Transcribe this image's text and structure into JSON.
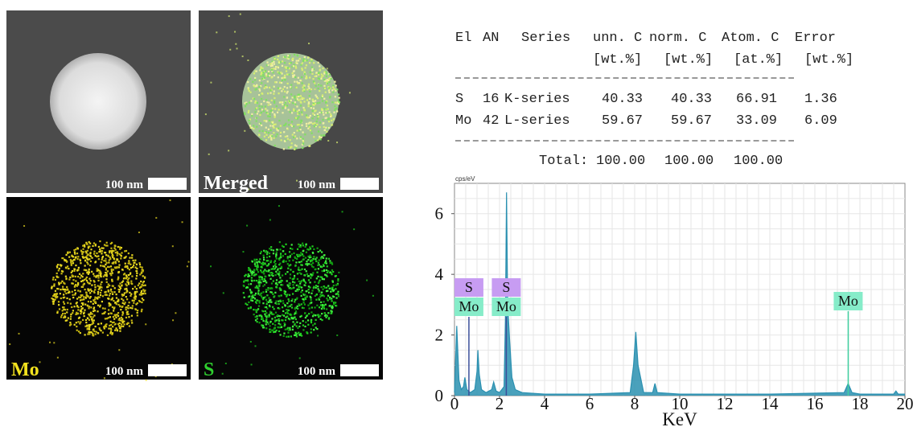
{
  "panels": [
    {
      "scale": "100 nm"
    },
    {
      "label": "Merged",
      "scale": "100 nm"
    },
    {
      "label": "Mo",
      "scale": "100 nm"
    },
    {
      "label": "S",
      "scale": "100 nm"
    }
  ],
  "table": {
    "header": [
      "El",
      "AN",
      "Series",
      "unn. C",
      "norm. C",
      "Atom. C",
      "Error"
    ],
    "units": [
      "[wt.%]",
      "[wt.%]",
      "[at.%]",
      "[wt.%]"
    ],
    "rows": [
      [
        "S",
        "16",
        "K-series",
        "40.33",
        "40.33",
        "66.91",
        "1.36"
      ],
      [
        "Mo",
        "42",
        "L-series",
        "59.67",
        "59.67",
        "33.09",
        "6.09"
      ]
    ],
    "total": [
      "Total:",
      "100.00",
      "100.00",
      "100.00"
    ]
  },
  "chart_data": {
    "type": "area",
    "y_unit": "cps/eV",
    "x_label": "KeV",
    "x": [
      0,
      0.1,
      0.2,
      0.3,
      0.4,
      0.46,
      0.55,
      0.7,
      0.9,
      1.0,
      1.04,
      1.1,
      1.2,
      1.4,
      1.65,
      1.74,
      1.85,
      2.0,
      2.2,
      2.26,
      2.31,
      2.36,
      2.45,
      2.55,
      2.7,
      3.0,
      4,
      6,
      7.8,
      7.95,
      8.05,
      8.15,
      8.4,
      8.8,
      8.9,
      9.0,
      10,
      14,
      17.3,
      17.48,
      17.65,
      18,
      19.5,
      19.6,
      19.7,
      20
    ],
    "values": [
      0.1,
      2.3,
      0.5,
      0.2,
      0.3,
      0.6,
      0.2,
      0.1,
      0.2,
      0.8,
      1.5,
      0.7,
      0.2,
      0.1,
      0.2,
      0.45,
      0.15,
      0.1,
      0.3,
      2.5,
      6.7,
      3.0,
      1.8,
      0.6,
      0.2,
      0.1,
      0.05,
      0.05,
      0.1,
      1.0,
      2.1,
      1.0,
      0.1,
      0.1,
      0.4,
      0.1,
      0.05,
      0.05,
      0.1,
      0.4,
      0.1,
      0.05,
      0.05,
      0.15,
      0.05,
      0.05
    ],
    "color": "#2a90b0",
    "xlim": [
      0,
      20
    ],
    "ylim": [
      0,
      7
    ],
    "xticks": [
      0,
      2,
      4,
      6,
      8,
      10,
      12,
      14,
      16,
      18,
      20
    ],
    "yticks": [
      0,
      2,
      4,
      6
    ],
    "grid": true,
    "peak_labels": [
      {
        "x": 0.64,
        "labels": [
          "S",
          "Mo"
        ]
      },
      {
        "x": 2.3,
        "labels": [
          "S",
          "Mo"
        ]
      },
      {
        "x": 17.48,
        "labels": [
          "Mo"
        ]
      }
    ]
  }
}
